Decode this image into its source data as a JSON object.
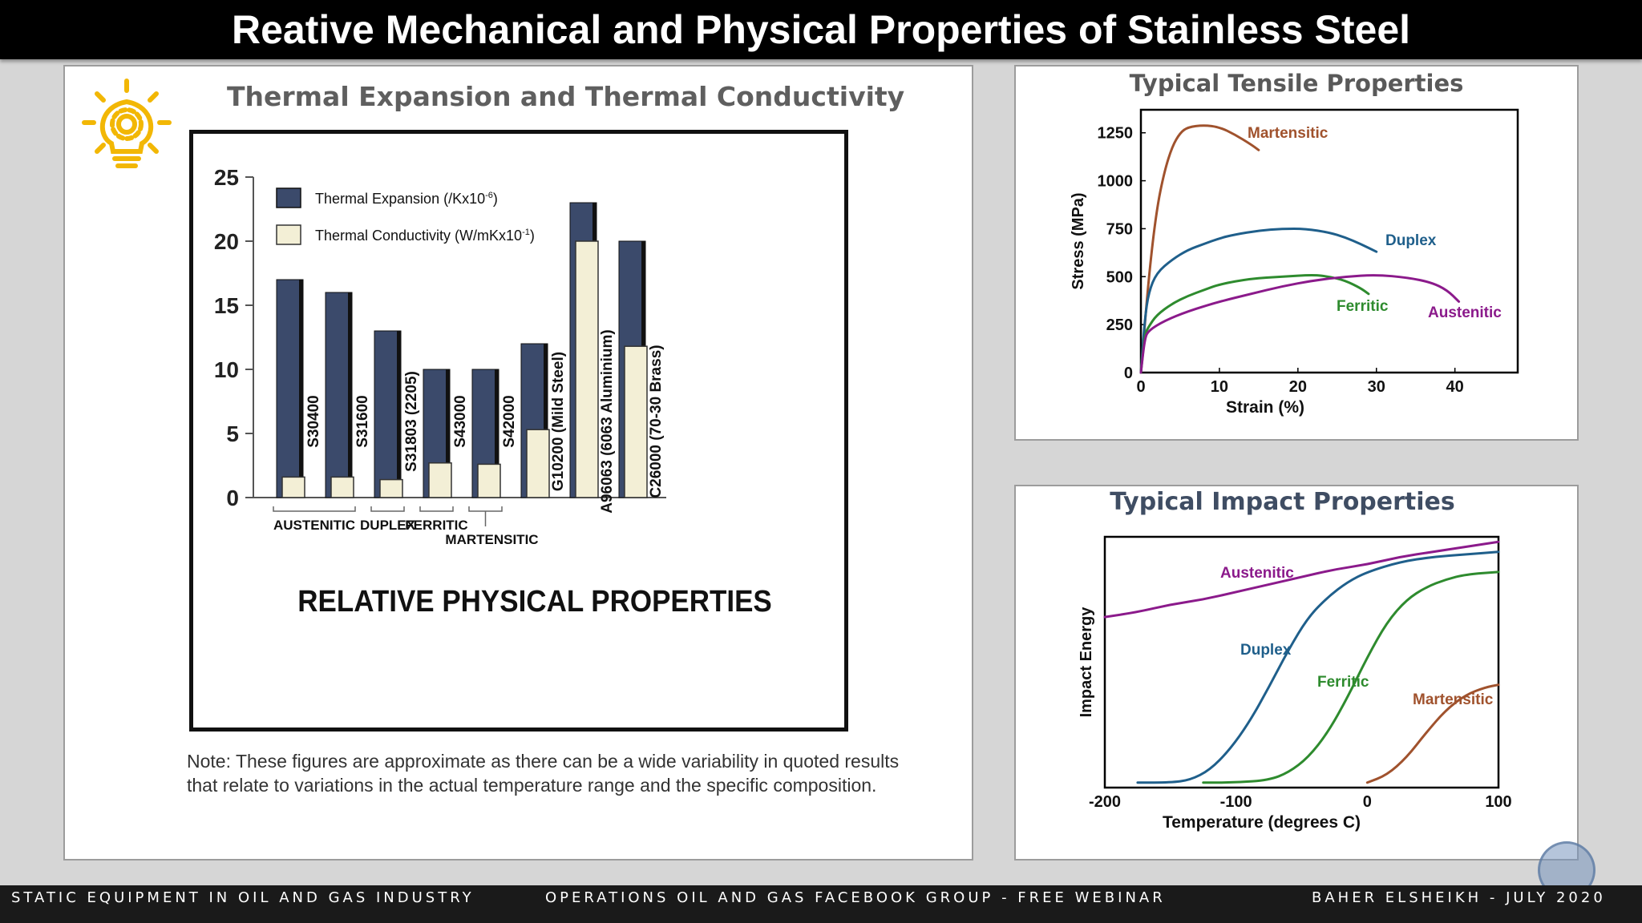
{
  "title": "Reative Mechanical and Physical Properties of Stainless Steel",
  "left_panel": {
    "title": "Thermal Expansion and Thermal Conductivity",
    "icon": "lightbulb-gear-icon",
    "note_line1": "Note: These figures are approximate as there can be a wide variability in quoted results",
    "note_line2": "that relate to variations in the actual temperature range and the specific composition."
  },
  "tensile_panel": {
    "title": "Typical Tensile Properties"
  },
  "impact_panel": {
    "title": "Typical Impact Properties"
  },
  "footer": {
    "left": "STATIC EQUIPMENT IN OIL AND GAS INDUSTRY",
    "center": "OPERATIONS OIL AND GAS FACEBOOK GROUP - FREE WEBINAR",
    "right": "BAHER ELSHEIKH - JULY 2020"
  },
  "colors": {
    "expansion": "#3b4a6b",
    "conductivity": "#f3efd6",
    "martensitic": "#a0522d",
    "duplex": "#1f5f8b",
    "ferritic": "#2e8b2e",
    "austenitic": "#8b1a8b",
    "icon": "#f2b705"
  },
  "chart_data": [
    {
      "type": "bar",
      "title": "RELATIVE PHYSICAL PROPERTIES",
      "categories": [
        "S30400",
        "S31600",
        "S31803 (2205)",
        "S43000",
        "S42000",
        "G10200 (Mild Steel)",
        "A96063 (6063 Aluminium)",
        "C26000 (70-30 Brass)"
      ],
      "series": [
        {
          "name": "Thermal Expansion (/Kx10",
          "sup": "-6",
          "end": ")",
          "values": [
            17,
            16,
            13,
            10,
            10,
            12,
            23,
            20
          ]
        },
        {
          "name": "Thermal Conductivity (W/mKx10",
          "sup": "-1",
          "end": ")",
          "values": [
            1.6,
            1.6,
            1.4,
            2.7,
            2.6,
            5.3,
            20,
            11.8
          ]
        }
      ],
      "ylim": [
        0,
        25
      ],
      "yticks": [
        "0",
        "5",
        "10",
        "15",
        "20",
        "25"
      ],
      "groups": [
        {
          "label": "AUSTENITIC",
          "from": 0,
          "to": 1
        },
        {
          "label": "DUPLEX",
          "from": 2,
          "to": 2
        },
        {
          "label": "FERRITIC",
          "from": 3,
          "to": 3
        },
        {
          "label": "MARTENSITIC",
          "from": 4,
          "to": 4
        }
      ],
      "legend": "top-left"
    },
    {
      "type": "line",
      "xlabel": "Strain (%)",
      "ylabel": "Stress (MPa)",
      "xlim": [
        0,
        48
      ],
      "ylim": [
        0,
        1370
      ],
      "xticks": [
        "0",
        "10",
        "20",
        "30",
        "40"
      ],
      "yticks": [
        "0",
        "250",
        "500",
        "750",
        "1000",
        "1250"
      ],
      "series": [
        {
          "name": "Martensitic",
          "x": [
            0,
            1,
            2,
            3,
            4,
            5,
            6,
            8,
            10,
            12,
            14,
            15
          ],
          "y": [
            0,
            500,
            850,
            1050,
            1180,
            1250,
            1280,
            1290,
            1280,
            1240,
            1190,
            1160
          ]
        },
        {
          "name": "Duplex",
          "x": [
            0,
            0.5,
            1,
            2,
            4,
            6,
            8,
            10,
            12,
            15,
            18,
            21,
            24,
            26,
            28,
            30
          ],
          "y": [
            0,
            280,
            420,
            520,
            590,
            640,
            670,
            700,
            720,
            740,
            750,
            750,
            730,
            705,
            670,
            630
          ]
        },
        {
          "name": "Ferritic",
          "x": [
            0,
            0.5,
            1,
            2,
            4,
            6,
            8,
            10,
            14,
            18,
            22,
            24,
            26,
            28,
            29
          ],
          "y": [
            0,
            200,
            240,
            300,
            360,
            400,
            430,
            460,
            490,
            500,
            510,
            500,
            480,
            440,
            410
          ]
        },
        {
          "name": "Austenitic",
          "x": [
            0,
            0.5,
            1,
            3,
            6,
            10,
            14,
            18,
            22,
            26,
            30,
            34,
            37,
            39,
            40.5
          ],
          "y": [
            0,
            180,
            220,
            270,
            320,
            370,
            410,
            450,
            480,
            500,
            510,
            495,
            470,
            430,
            370
          ]
        }
      ],
      "labels_color_coded": true
    },
    {
      "type": "line",
      "xlabel": "Temperature (degrees C)",
      "ylabel": "Impact Energy",
      "xlim": [
        -200,
        100
      ],
      "ylim": [
        0,
        100
      ],
      "xticks": [
        "-200",
        "-100",
        "0",
        "100"
      ],
      "series": [
        {
          "name": "Austenitic",
          "x": [
            -200,
            -175,
            -150,
            -125,
            -100,
            -75,
            -50,
            -25,
            0,
            25,
            50,
            75,
            100
          ],
          "y": [
            68,
            70,
            73,
            75,
            78,
            81,
            84,
            87,
            89,
            92,
            94,
            96,
            98
          ]
        },
        {
          "name": "Duplex",
          "x": [
            -175,
            -150,
            -135,
            -120,
            -105,
            -90,
            -75,
            -60,
            -45,
            -30,
            -15,
            0,
            25,
            50,
            75,
            100
          ],
          "y": [
            2,
            2,
            3,
            7,
            15,
            26,
            40,
            55,
            68,
            76,
            82,
            86,
            90,
            92,
            93,
            94
          ]
        },
        {
          "name": "Ferritic",
          "x": [
            -125,
            -100,
            -75,
            -60,
            -45,
            -30,
            -15,
            0,
            15,
            30,
            45,
            60,
            75,
            100
          ],
          "y": [
            2,
            2,
            3,
            6,
            12,
            22,
            36,
            52,
            66,
            75,
            80,
            83,
            85,
            86
          ]
        },
        {
          "name": "Martensitic",
          "x": [
            0,
            15,
            30,
            45,
            60,
            75,
            90,
            100
          ],
          "y": [
            2,
            5,
            12,
            22,
            31,
            37,
            40,
            41
          ]
        }
      ]
    }
  ]
}
